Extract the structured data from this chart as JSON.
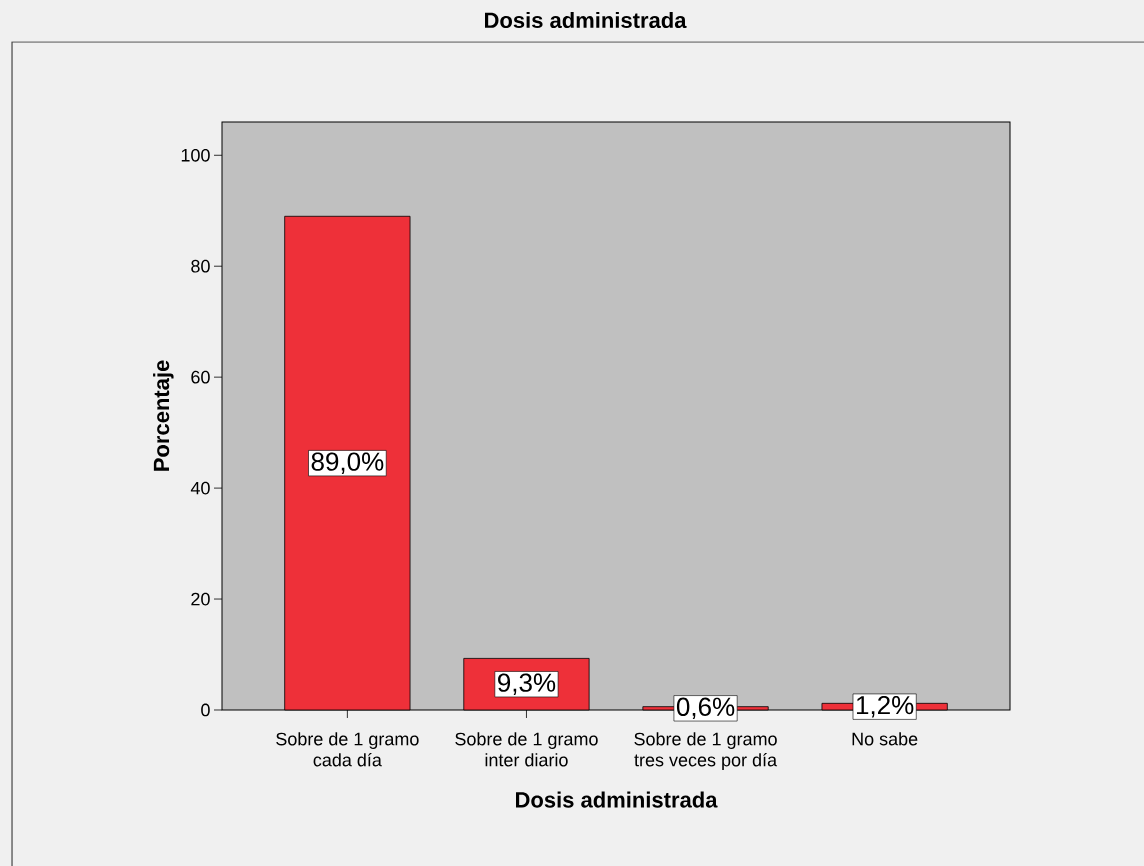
{
  "chart_data": {
    "type": "bar",
    "title": "Dosis administrada",
    "xlabel": "Dosis administrada",
    "ylabel": "Porcentaje",
    "categories": [
      "Sobre de 1 gramo cada día",
      "Sobre de 1 gramo inter diario",
      "Sobre de 1 gramo tres veces por día",
      "No sabe"
    ],
    "values": [
      89.0,
      9.3,
      0.6,
      1.2
    ],
    "value_labels": [
      "89,0%",
      "9,3%",
      "0,6%",
      "1,2%"
    ],
    "color": "#ee3039",
    "ylim": [
      0,
      106
    ],
    "yticks": [
      0,
      20,
      40,
      60,
      80,
      100
    ]
  }
}
